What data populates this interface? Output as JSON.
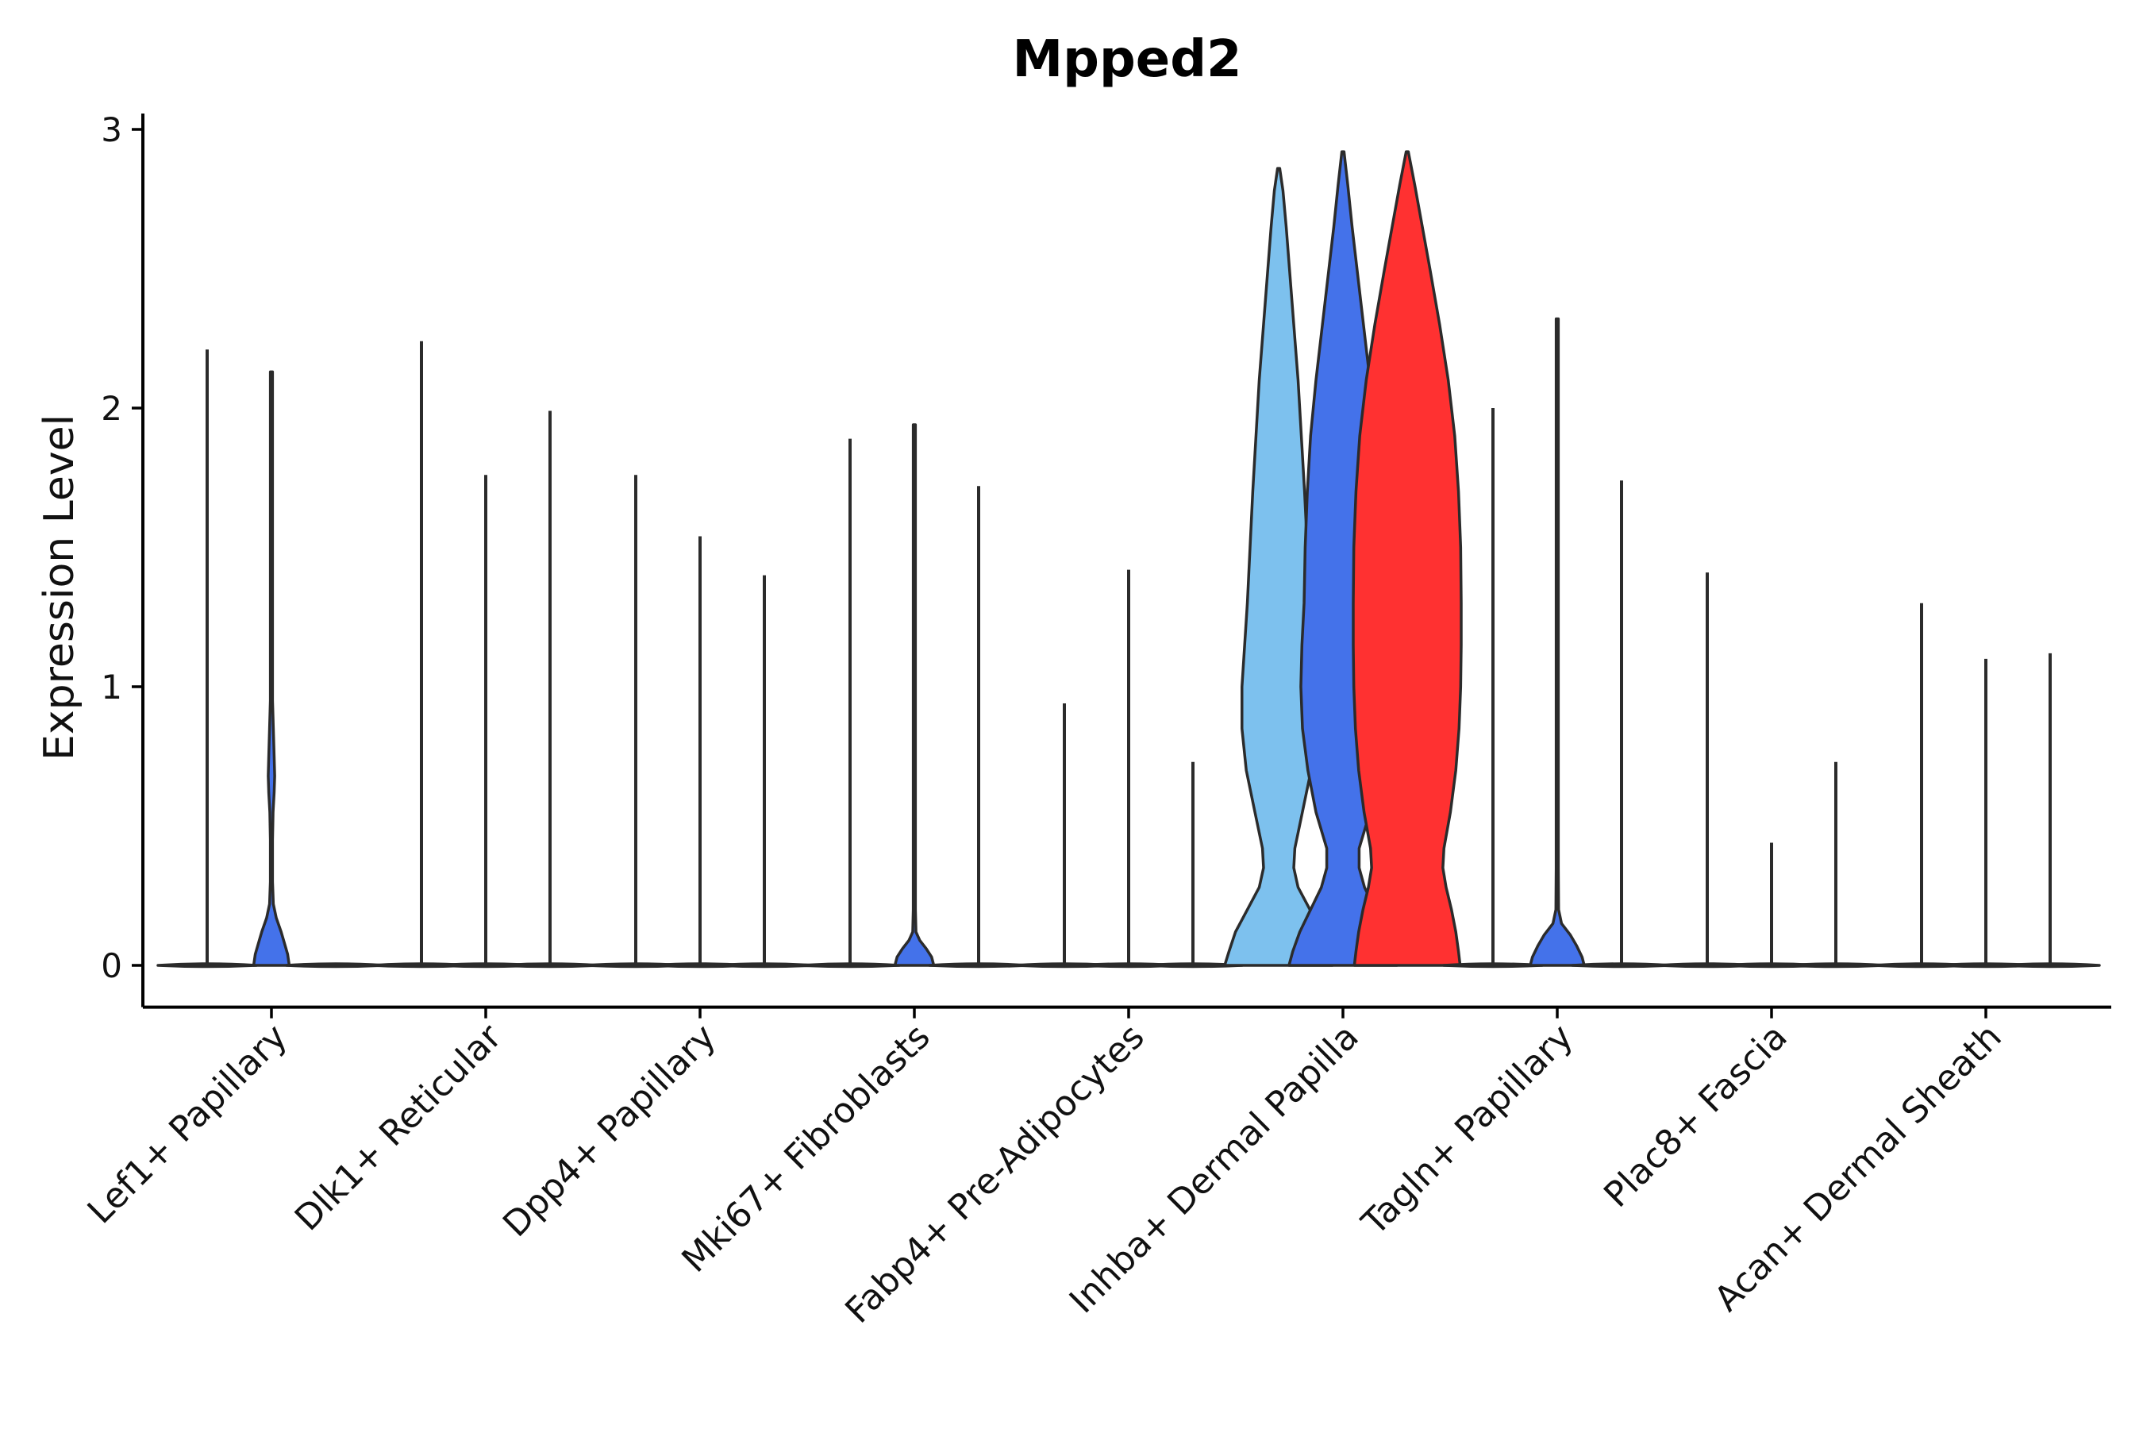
{
  "chart_data": {
    "type": "violin",
    "title": "Mpped2",
    "xlabel": "",
    "ylabel": "Expression Level",
    "ylim": [
      -0.15,
      3.05
    ],
    "yticks": [
      0,
      1,
      2,
      3
    ],
    "categories": [
      "Lef1+ Papillary",
      "Dlk1+ Reticular",
      "Dpp4+ Papillary",
      "Mki67+ Fibroblasts",
      "Fabp4+ Pre-Adipocytes",
      "Inhba+ Dermal Papilla",
      "Tagln+ Papillary",
      "Plac8+ Fascia",
      "Acan+ Dermal Sheath"
    ],
    "groups_per_category": 3,
    "colors": {
      "light_blue": "#7DC1EE",
      "blue": "#4472EA",
      "red": "#FF3131",
      "outline": "#2b2b2b",
      "axis": "#000000"
    },
    "series": [
      {
        "category": "Lef1+ Papillary",
        "sub": 0,
        "max": 2.21,
        "color": "#4472EA",
        "profile": []
      },
      {
        "category": "Lef1+ Papillary",
        "sub": 1,
        "max": 2.13,
        "color": "#4472EA",
        "profile": [
          [
            0,
            0.33
          ],
          [
            0.04,
            0.3
          ],
          [
            0.08,
            0.24
          ],
          [
            0.12,
            0.18
          ],
          [
            0.17,
            0.09
          ],
          [
            0.22,
            0.035
          ],
          [
            0.3,
            0.02
          ],
          [
            0.45,
            0.02
          ],
          [
            0.55,
            0.03
          ],
          [
            0.62,
            0.05
          ],
          [
            0.68,
            0.06
          ],
          [
            0.75,
            0.05
          ],
          [
            0.85,
            0.035
          ],
          [
            0.95,
            0.02
          ],
          [
            1.1,
            0.012
          ],
          [
            1.4,
            0.008
          ],
          [
            1.8,
            0.006
          ],
          [
            2.13,
            0.006
          ]
        ]
      },
      {
        "category": "Lef1+ Papillary",
        "sub": 2,
        "max": 0,
        "color": "#4472EA",
        "profile": []
      },
      {
        "category": "Dlk1+ Reticular",
        "sub": 0,
        "max": 2.24,
        "color": "#4472EA",
        "profile": []
      },
      {
        "category": "Dlk1+ Reticular",
        "sub": 1,
        "max": 1.76,
        "color": "#4472EA",
        "profile": []
      },
      {
        "category": "Dlk1+ Reticular",
        "sub": 2,
        "max": 1.99,
        "color": "#4472EA",
        "profile": []
      },
      {
        "category": "Dpp4+ Papillary",
        "sub": 0,
        "max": 1.76,
        "color": "#4472EA",
        "profile": []
      },
      {
        "category": "Dpp4+ Papillary",
        "sub": 1,
        "max": 1.54,
        "color": "#4472EA",
        "profile": []
      },
      {
        "category": "Dpp4+ Papillary",
        "sub": 2,
        "max": 1.4,
        "color": "#4472EA",
        "profile": []
      },
      {
        "category": "Mki67+ Fibroblasts",
        "sub": 0,
        "max": 1.89,
        "color": "#4472EA",
        "profile": []
      },
      {
        "category": "Mki67+ Fibroblasts",
        "sub": 1,
        "max": 1.94,
        "color": "#4472EA",
        "profile": [
          [
            0,
            0.36
          ],
          [
            0.03,
            0.32
          ],
          [
            0.06,
            0.22
          ],
          [
            0.09,
            0.1
          ],
          [
            0.12,
            0.03
          ],
          [
            0.2,
            0.015
          ],
          [
            0.4,
            0.012
          ],
          [
            0.5,
            0.015
          ],
          [
            0.6,
            0.012
          ],
          [
            0.8,
            0.008
          ],
          [
            1.2,
            0.006
          ],
          [
            1.94,
            0.006
          ]
        ]
      },
      {
        "category": "Mki67+ Fibroblasts",
        "sub": 2,
        "max": 1.72,
        "color": "#4472EA",
        "profile": []
      },
      {
        "category": "Fabp4+ Pre-Adipocytes",
        "sub": 0,
        "max": 0.94,
        "color": "#4472EA",
        "profile": []
      },
      {
        "category": "Fabp4+ Pre-Adipocytes",
        "sub": 1,
        "max": 1.42,
        "color": "#4472EA",
        "profile": []
      },
      {
        "category": "Fabp4+ Pre-Adipocytes",
        "sub": 2,
        "max": 0.73,
        "color": "#4472EA",
        "profile": []
      },
      {
        "category": "Inhba+ Dermal Papilla",
        "sub": 0,
        "max": 2.86,
        "color": "#7DC1EE",
        "profile": [
          [
            0,
            1.0
          ],
          [
            0.05,
            0.92
          ],
          [
            0.12,
            0.8
          ],
          [
            0.2,
            0.58
          ],
          [
            0.28,
            0.36
          ],
          [
            0.35,
            0.28
          ],
          [
            0.42,
            0.3
          ],
          [
            0.55,
            0.44
          ],
          [
            0.7,
            0.6
          ],
          [
            0.85,
            0.68
          ],
          [
            1.0,
            0.68
          ],
          [
            1.15,
            0.63
          ],
          [
            1.3,
            0.58
          ],
          [
            1.5,
            0.53
          ],
          [
            1.7,
            0.48
          ],
          [
            1.9,
            0.42
          ],
          [
            2.1,
            0.36
          ],
          [
            2.3,
            0.28
          ],
          [
            2.5,
            0.2
          ],
          [
            2.65,
            0.14
          ],
          [
            2.78,
            0.08
          ],
          [
            2.86,
            0.02
          ]
        ]
      },
      {
        "category": "Inhba+ Dermal Papilla",
        "sub": 1,
        "max": 2.92,
        "color": "#4472EA",
        "profile": [
          [
            0,
            1.0
          ],
          [
            0.05,
            0.93
          ],
          [
            0.12,
            0.8
          ],
          [
            0.2,
            0.6
          ],
          [
            0.28,
            0.4
          ],
          [
            0.35,
            0.3
          ],
          [
            0.42,
            0.3
          ],
          [
            0.55,
            0.5
          ],
          [
            0.7,
            0.65
          ],
          [
            0.85,
            0.75
          ],
          [
            1.0,
            0.78
          ],
          [
            1.15,
            0.76
          ],
          [
            1.3,
            0.72
          ],
          [
            1.5,
            0.7
          ],
          [
            1.7,
            0.66
          ],
          [
            1.9,
            0.6
          ],
          [
            2.1,
            0.5
          ],
          [
            2.3,
            0.38
          ],
          [
            2.5,
            0.26
          ],
          [
            2.65,
            0.17
          ],
          [
            2.8,
            0.09
          ],
          [
            2.92,
            0.02
          ]
        ]
      },
      {
        "category": "Inhba+ Dermal Papilla",
        "sub": 2,
        "max": 2.92,
        "color": "#FF3131",
        "profile": [
          [
            0,
            0.98
          ],
          [
            0.05,
            0.95
          ],
          [
            0.12,
            0.9
          ],
          [
            0.2,
            0.82
          ],
          [
            0.28,
            0.72
          ],
          [
            0.35,
            0.66
          ],
          [
            0.42,
            0.68
          ],
          [
            0.55,
            0.8
          ],
          [
            0.7,
            0.9
          ],
          [
            0.85,
            0.96
          ],
          [
            1.0,
            0.99
          ],
          [
            1.15,
            1.0
          ],
          [
            1.3,
            1.0
          ],
          [
            1.5,
            0.99
          ],
          [
            1.7,
            0.95
          ],
          [
            1.9,
            0.88
          ],
          [
            2.1,
            0.76
          ],
          [
            2.3,
            0.6
          ],
          [
            2.5,
            0.42
          ],
          [
            2.65,
            0.28
          ],
          [
            2.8,
            0.14
          ],
          [
            2.92,
            0.02
          ]
        ]
      },
      {
        "category": "Tagln+ Papillary",
        "sub": 0,
        "max": 2.0,
        "color": "#4472EA",
        "profile": []
      },
      {
        "category": "Tagln+ Papillary",
        "sub": 1,
        "max": 2.32,
        "color": "#4472EA",
        "profile": [
          [
            0,
            0.5
          ],
          [
            0.03,
            0.46
          ],
          [
            0.07,
            0.36
          ],
          [
            0.11,
            0.24
          ],
          [
            0.15,
            0.08
          ],
          [
            0.2,
            0.025
          ],
          [
            0.35,
            0.015
          ],
          [
            0.5,
            0.015
          ],
          [
            0.65,
            0.02
          ],
          [
            0.75,
            0.015
          ],
          [
            0.9,
            0.01
          ],
          [
            1.2,
            0.008
          ],
          [
            1.6,
            0.006
          ],
          [
            2.32,
            0.006
          ]
        ]
      },
      {
        "category": "Tagln+ Papillary",
        "sub": 2,
        "max": 1.74,
        "color": "#4472EA",
        "profile": []
      },
      {
        "category": "Plac8+ Fascia",
        "sub": 0,
        "max": 1.41,
        "color": "#4472EA",
        "profile": []
      },
      {
        "category": "Plac8+ Fascia",
        "sub": 1,
        "max": 0.44,
        "color": "#4472EA",
        "profile": []
      },
      {
        "category": "Plac8+ Fascia",
        "sub": 2,
        "max": 0.73,
        "color": "#4472EA",
        "profile": []
      },
      {
        "category": "Acan+ Dermal Sheath",
        "sub": 0,
        "max": 1.3,
        "color": "#4472EA",
        "profile": []
      },
      {
        "category": "Acan+ Dermal Sheath",
        "sub": 1,
        "max": 1.1,
        "color": "#4472EA",
        "profile": []
      },
      {
        "category": "Acan+ Dermal Sheath",
        "sub": 2,
        "max": 1.12,
        "color": "#4472EA",
        "profile": []
      }
    ]
  }
}
